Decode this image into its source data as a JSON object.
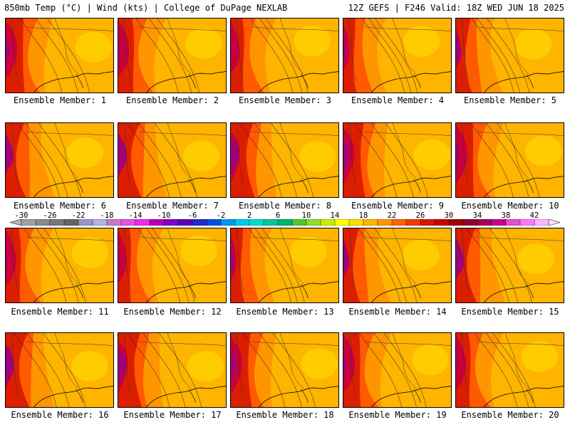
{
  "header": {
    "left": "850mb Temp (°C) | Wind (kts) | College of DuPage NEXLAB",
    "right": "12Z GEFS | F246 Valid: 18Z WED JUN 18 2025"
  },
  "panels": [
    {
      "caption": "Ensemble Member: 1"
    },
    {
      "caption": "Ensemble Member: 2"
    },
    {
      "caption": "Ensemble Member: 3"
    },
    {
      "caption": "Ensemble Member: 4"
    },
    {
      "caption": "Ensemble Member: 5"
    },
    {
      "caption": "Ensemble Member: 6"
    },
    {
      "caption": "Ensemble Member: 7"
    },
    {
      "caption": "Ensemble Member: 8"
    },
    {
      "caption": "Ensemble Member: 9"
    },
    {
      "caption": "Ensemble Member: 10"
    },
    {
      "caption": "Ensemble Member: 11"
    },
    {
      "caption": "Ensemble Member: 12"
    },
    {
      "caption": "Ensemble Member: 13"
    },
    {
      "caption": "Ensemble Member: 14"
    },
    {
      "caption": "Ensemble Member: 15"
    },
    {
      "caption": "Ensemble Member: 16"
    },
    {
      "caption": "Ensemble Member: 17"
    },
    {
      "caption": "Ensemble Member: 18"
    },
    {
      "caption": "Ensemble Member: 19"
    },
    {
      "caption": "Ensemble Member: 20"
    }
  ],
  "colorbar": {
    "labels": [
      "-30",
      "-26",
      "-22",
      "-18",
      "-14",
      "-10",
      "-6",
      "-2",
      "2",
      "6",
      "10",
      "14",
      "18",
      "22",
      "26",
      "30",
      "34",
      "38",
      "42"
    ],
    "colors": [
      "#a0a0a0",
      "#8c8c8c",
      "#787878",
      "#646464",
      "#9696c8",
      "#b4b4dc",
      "#c878c8",
      "#e650e6",
      "#f028f0",
      "#b400b4",
      "#8200c8",
      "#5a00b4",
      "#2828c8",
      "#0050dc",
      "#0096f0",
      "#00c8f0",
      "#00dcc8",
      "#00c896",
      "#00b464",
      "#50c832",
      "#96dc32",
      "#c8f000",
      "#ffff00",
      "#ffdc00",
      "#ffb400",
      "#ff9600",
      "#ff6400",
      "#f03c00",
      "#dc1400",
      "#c80000",
      "#a00000",
      "#8c0032",
      "#a0005a",
      "#c8008c",
      "#e650c8",
      "#ff78ff",
      "#ffb4ff"
    ]
  },
  "map_colors": {
    "hot": "#c8003c",
    "magenta": "#a0007a",
    "red": "#dc1e00",
    "orange_red": "#ff5a00",
    "orange": "#ff9600",
    "amber": "#ffb400",
    "yellow": "#ffd200"
  }
}
